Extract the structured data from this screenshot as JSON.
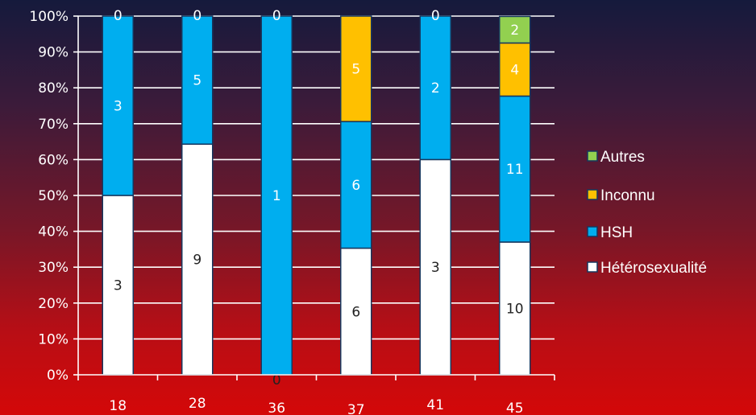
{
  "chart_data": {
    "type": "bar",
    "stacked": "percent",
    "categories": [
      "18",
      "28",
      "36",
      "37",
      "41",
      "45"
    ],
    "series": [
      {
        "name": "Hétérosexualité",
        "color": "#ffffff",
        "counts": [
          "3",
          "9",
          "0",
          "6",
          "3",
          "10"
        ],
        "values": [
          50.0,
          64.3,
          0.0,
          35.3,
          60.0,
          37.0
        ]
      },
      {
        "name": "HSH",
        "color": "#00aeef",
        "counts": [
          "3",
          "5",
          "1",
          "6",
          "2",
          "11"
        ],
        "values": [
          50.0,
          35.7,
          100.0,
          35.3,
          40.0,
          40.7
        ]
      },
      {
        "name": "Inconnu",
        "color": "#ffc000",
        "counts": [
          "0",
          "0",
          "0",
          "5",
          "0",
          "4"
        ],
        "values": [
          0.0,
          0.0,
          0.0,
          29.4,
          0.0,
          14.8
        ]
      },
      {
        "name": "Autres",
        "color": "#92d050",
        "counts": [
          "",
          "",
          "",
          "",
          "",
          "2"
        ],
        "values": [
          0.0,
          0.0,
          0.0,
          0.0,
          0.0,
          7.4
        ]
      }
    ],
    "yticks": [
      "0%",
      "10%",
      "20%",
      "30%",
      "40%",
      "50%",
      "60%",
      "70%",
      "80%",
      "90%",
      "100%"
    ],
    "ylim": [
      0,
      100
    ],
    "grid": true,
    "legend": "right",
    "legend_order": [
      "Autres",
      "Inconnu",
      "HSH",
      "Hétérosexualité"
    ],
    "bar_outline": "#17375e"
  }
}
